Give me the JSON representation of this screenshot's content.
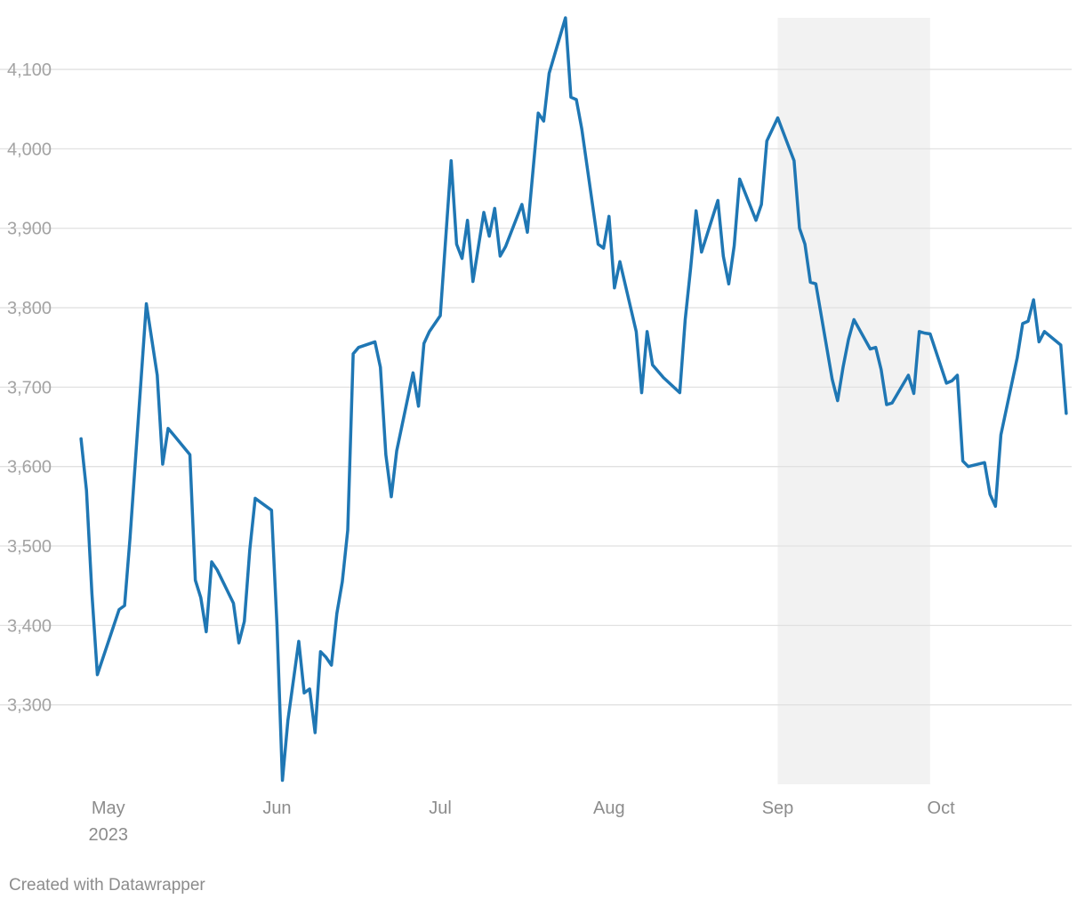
{
  "chart_data": {
    "type": "line",
    "title": "",
    "xlabel": "",
    "ylabel": "",
    "xlim": [
      "2023-04-25",
      "2023-10-25"
    ],
    "ylim": [
      3200,
      4165
    ],
    "y_ticks": [
      3300,
      3400,
      3500,
      3600,
      3700,
      3800,
      3900,
      4000,
      4100
    ],
    "y_tick_labels": [
      "3,300",
      "3,400",
      "3,500",
      "3,600",
      "3,700",
      "3,800",
      "3,900",
      "4,000",
      "4,100"
    ],
    "x_ticks": [
      {
        "date": "2023-05-01",
        "label": "May",
        "sublabel": "2023"
      },
      {
        "date": "2023-06-01",
        "label": "Jun",
        "sublabel": ""
      },
      {
        "date": "2023-07-01",
        "label": "Jul",
        "sublabel": ""
      },
      {
        "date": "2023-08-01",
        "label": "Aug",
        "sublabel": ""
      },
      {
        "date": "2023-09-01",
        "label": "Sep",
        "sublabel": ""
      },
      {
        "date": "2023-10-01",
        "label": "Oct",
        "sublabel": ""
      }
    ],
    "grid": true,
    "shaded_range": {
      "start": "2023-09-01",
      "end": "2023-09-29",
      "color": "#f2f2f2"
    },
    "series": [
      {
        "color": "#1f77b4",
        "x": [
          "2023-04-26",
          "2023-04-27",
          "2023-04-28",
          "2023-04-29",
          "2023-05-03",
          "2023-05-04",
          "2023-05-05",
          "2023-05-08",
          "2023-05-10",
          "2023-05-11",
          "2023-05-12",
          "2023-05-13",
          "2023-05-16",
          "2023-05-17",
          "2023-05-18",
          "2023-05-19",
          "2023-05-20",
          "2023-05-21",
          "2023-05-24",
          "2023-05-25",
          "2023-05-26",
          "2023-05-27",
          "2023-05-28",
          "2023-05-31",
          "2023-06-01",
          "2023-06-02",
          "2023-06-03",
          "2023-06-05",
          "2023-06-06",
          "2023-06-07",
          "2023-06-08",
          "2023-06-09",
          "2023-06-10",
          "2023-06-11",
          "2023-06-12",
          "2023-06-13",
          "2023-06-14",
          "2023-06-15",
          "2023-06-16",
          "2023-06-19",
          "2023-06-20",
          "2023-06-21",
          "2023-06-22",
          "2023-06-23",
          "2023-06-26",
          "2023-06-27",
          "2023-06-28",
          "2023-06-29",
          "2023-07-01",
          "2023-07-03",
          "2023-07-04",
          "2023-07-05",
          "2023-07-06",
          "2023-07-07",
          "2023-07-09",
          "2023-07-10",
          "2023-07-11",
          "2023-07-12",
          "2023-07-13",
          "2023-07-16",
          "2023-07-17",
          "2023-07-18",
          "2023-07-19",
          "2023-07-20",
          "2023-07-21",
          "2023-07-24",
          "2023-07-25",
          "2023-07-26",
          "2023-07-27",
          "2023-07-30",
          "2023-07-31",
          "2023-08-01",
          "2023-08-02",
          "2023-08-03",
          "2023-08-06",
          "2023-08-07",
          "2023-08-08",
          "2023-08-09",
          "2023-08-10",
          "2023-08-11",
          "2023-08-14",
          "2023-08-15",
          "2023-08-16",
          "2023-08-17",
          "2023-08-18",
          "2023-08-21",
          "2023-08-22",
          "2023-08-23",
          "2023-08-24",
          "2023-08-25",
          "2023-08-28",
          "2023-08-29",
          "2023-08-30",
          "2023-09-01",
          "2023-09-04",
          "2023-09-05",
          "2023-09-06",
          "2023-09-07",
          "2023-09-08",
          "2023-09-11",
          "2023-09-12",
          "2023-09-13",
          "2023-09-14",
          "2023-09-15",
          "2023-09-18",
          "2023-09-19",
          "2023-09-20",
          "2023-09-21",
          "2023-09-22",
          "2023-09-25",
          "2023-09-26",
          "2023-09-27",
          "2023-09-28",
          "2023-09-29",
          "2023-10-02",
          "2023-10-03",
          "2023-10-04",
          "2023-10-05",
          "2023-10-06",
          "2023-10-09",
          "2023-10-10",
          "2023-10-11",
          "2023-10-12",
          "2023-10-15",
          "2023-10-16",
          "2023-10-17",
          "2023-10-18",
          "2023-10-19",
          "2023-10-20",
          "2023-10-23",
          "2023-10-24"
        ],
        "y": [
          3635,
          3570,
          3440,
          3338,
          3420,
          3425,
          3510,
          3805,
          3715,
          3603,
          3648,
          3640,
          3615,
          3457,
          3435,
          3392,
          3480,
          3470,
          3428,
          3378,
          3405,
          3495,
          3560,
          3545,
          3400,
          3205,
          3280,
          3380,
          3315,
          3320,
          3265,
          3367,
          3360,
          3350,
          3415,
          3455,
          3520,
          3742,
          3750,
          3757,
          3725,
          3615,
          3562,
          3620,
          3718,
          3676,
          3755,
          3770,
          3790,
          3985,
          3880,
          3862,
          3910,
          3833,
          3920,
          3890,
          3925,
          3865,
          3877,
          3930,
          3895,
          3970,
          4045,
          4035,
          4095,
          4165,
          4065,
          4062,
          4025,
          3880,
          3875,
          3915,
          3825,
          3858,
          3770,
          3693,
          3770,
          3728,
          3720,
          3712,
          3693,
          3785,
          3850,
          3922,
          3870,
          3935,
          3865,
          3830,
          3878,
          3962,
          3910,
          3930,
          4010,
          4039,
          3985,
          3900,
          3880,
          3832,
          3830,
          3710,
          3683,
          3725,
          3760,
          3785,
          3748,
          3750,
          3722,
          3678,
          3680,
          3715,
          3692,
          3770,
          3768,
          3767,
          3705,
          3708,
          3715,
          3607,
          3600,
          3605,
          3565,
          3550,
          3640,
          3737,
          3780,
          3783,
          3810,
          3757,
          3770,
          3753,
          3667
        ]
      }
    ]
  },
  "footer": {
    "credit": "Created with Datawrapper"
  }
}
